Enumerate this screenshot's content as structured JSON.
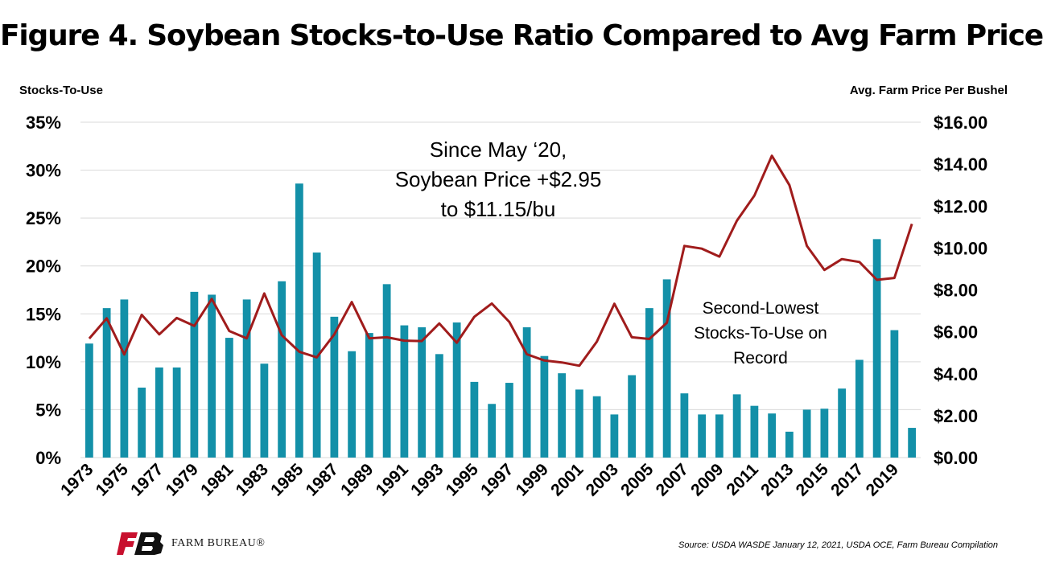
{
  "title": "Figure 4. Soybean Stocks-to-Use Ratio Compared to Avg Farm Price",
  "left_axis_title": "Stocks-To-Use",
  "right_axis_title": "Avg. Farm Price Per Bushel",
  "annotation_main": [
    "Since May ‘20,",
    "Soybean Price +$2.95",
    "to $11.15/bu"
  ],
  "annotation_secondary": [
    "Second-Lowest",
    "Stocks-To-Use on",
    "Record"
  ],
  "source": "Source: USDA WASDE January 12, 2021, USDA OCE, Farm Bureau Compilation",
  "logo_text": "FARM BUREAU®",
  "colors": {
    "bars": "#1390a8",
    "line": "#a01c1c",
    "grid": "#d9d9d9",
    "logo": "#c8102e"
  },
  "icons": {
    "logo": "farm-bureau-logo-icon"
  },
  "chart_data": {
    "type": "bar",
    "grid": true,
    "legend": "none",
    "x": [
      1973,
      1974,
      1975,
      1976,
      1977,
      1978,
      1979,
      1980,
      1981,
      1982,
      1983,
      1984,
      1985,
      1986,
      1987,
      1988,
      1989,
      1990,
      1991,
      1992,
      1993,
      1994,
      1995,
      1996,
      1997,
      1998,
      1999,
      2000,
      2001,
      2002,
      2003,
      2004,
      2005,
      2006,
      2007,
      2008,
      2009,
      2010,
      2011,
      2012,
      2013,
      2014,
      2015,
      2016,
      2017,
      2018,
      2019,
      2020
    ],
    "x_tick_labels": [
      "1973",
      "1975",
      "1977",
      "1979",
      "1981",
      "1983",
      "1985",
      "1987",
      "1989",
      "1991",
      "1993",
      "1995",
      "1997",
      "1999",
      "2001",
      "2003",
      "2005",
      "2007",
      "2009",
      "2011",
      "2013",
      "2015",
      "2017",
      "2019"
    ],
    "y_left": {
      "label": "Stocks-To-Use",
      "ylim": [
        0,
        35
      ],
      "ticks": [
        "0%",
        "5%",
        "10%",
        "15%",
        "20%",
        "25%",
        "30%",
        "35%"
      ]
    },
    "y_right": {
      "label": "Avg. Farm Price Per Bushel",
      "ylim": [
        0,
        16
      ],
      "ticks": [
        "$0.00",
        "$2.00",
        "$4.00",
        "$6.00",
        "$8.00",
        "$10.00",
        "$12.00",
        "$14.00",
        "$16.00"
      ]
    },
    "series": [
      {
        "type": "bar",
        "axis": "left",
        "unit": "%",
        "values": [
          11.9,
          15.6,
          16.5,
          7.3,
          9.4,
          9.4,
          17.3,
          17.0,
          12.5,
          16.5,
          9.8,
          18.4,
          28.6,
          21.4,
          14.7,
          11.1,
          13.0,
          18.1,
          13.8,
          13.6,
          10.8,
          14.1,
          7.9,
          5.6,
          7.8,
          13.6,
          10.6,
          8.8,
          7.1,
          6.4,
          4.5,
          8.6,
          15.6,
          18.6,
          6.7,
          4.5,
          4.5,
          6.6,
          5.4,
          4.6,
          2.7,
          5.0,
          5.1,
          7.2,
          10.2,
          22.8,
          13.3,
          3.1
        ]
      },
      {
        "type": "line",
        "axis": "right",
        "unit": "$/bu",
        "values": [
          5.68,
          6.64,
          4.92,
          6.81,
          5.88,
          6.66,
          6.28,
          7.57,
          6.04,
          5.69,
          7.83,
          5.84,
          5.05,
          4.78,
          5.88,
          7.42,
          5.69,
          5.74,
          5.58,
          5.56,
          6.4,
          5.48,
          6.72,
          7.35,
          6.47,
          4.93,
          4.63,
          4.54,
          4.38,
          5.53,
          7.34,
          5.74,
          5.66,
          6.43,
          10.1,
          9.97,
          9.59,
          11.3,
          12.5,
          14.4,
          13.0,
          10.1,
          8.95,
          9.47,
          9.33,
          8.48,
          8.57,
          11.15
        ]
      }
    ]
  }
}
